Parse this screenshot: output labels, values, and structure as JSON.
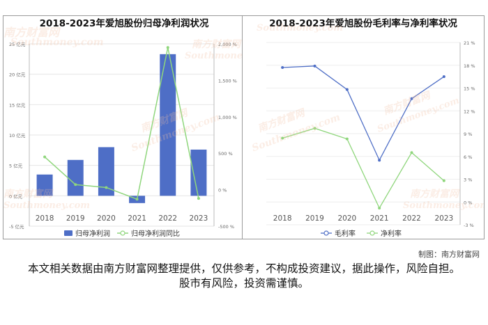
{
  "credit": "制图：南方财富网",
  "disclaimer": "本文相关数据由南方财富网整理提供，仅供参考，不构成投资建议，据此操作，风险自担。股市有风险，投资需谨慎。",
  "watermark": {
    "cn": "南方财富网",
    "en": "Southmoney.com",
    "color": "#f2bea0"
  },
  "chart_data": [
    {
      "type": "bar",
      "title": "2018-2023年爱旭股份归母净利润状况",
      "categories": [
        "2018",
        "2019",
        "2020",
        "2021",
        "2022",
        "2023"
      ],
      "yticks_left": [
        "25 亿元",
        "20 亿元",
        "15 亿元",
        "10 亿元",
        "5 亿元",
        "0 亿元",
        "-5 亿元"
      ],
      "yticks_right": [
        "2,000 %",
        "1,500 %",
        "1,000 %",
        "500 %",
        "0 %",
        "-500 %"
      ],
      "ylim_left": [
        -5,
        25
      ],
      "ylim_right": [
        -500,
        2000
      ],
      "legend_position": "bottom",
      "series": [
        {
          "name": "归母净利润",
          "kind": "bar",
          "axis": "left",
          "color": "#4e6ec6",
          "values": [
            3.5,
            5.9,
            8.0,
            -1.2,
            23.3,
            7.6
          ]
        },
        {
          "name": "归母净利润同比",
          "kind": "line",
          "axis": "right",
          "color": "#8fd67c",
          "values": [
            450,
            70,
            30,
            -130,
            1950,
            -120
          ]
        }
      ]
    },
    {
      "type": "line",
      "title": "2018-2023年爱旭股份毛利率与净利率状况",
      "categories": [
        "2018",
        "2019",
        "2020",
        "2021",
        "2022",
        "2023"
      ],
      "yticks_right": [
        "21 %",
        "18 %",
        "15 %",
        "12 %",
        "9 %",
        "6 %",
        "3 %",
        "0 %",
        "-3 %"
      ],
      "ylim": [
        -3,
        21
      ],
      "legend_position": "bottom",
      "series": [
        {
          "name": "毛利率",
          "color": "#4e6ec6",
          "values": [
            17.7,
            17.9,
            14.8,
            5.5,
            13.6,
            16.5
          ]
        },
        {
          "name": "净利率",
          "color": "#8fd67c",
          "values": [
            8.4,
            9.7,
            8.3,
            -0.8,
            6.5,
            2.8
          ]
        }
      ]
    }
  ]
}
